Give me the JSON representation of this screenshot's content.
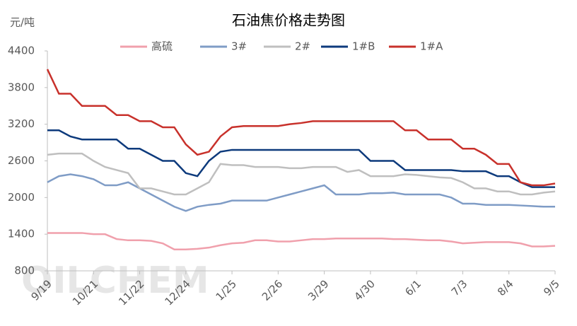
{
  "chart_data": {
    "type": "line",
    "title": "石油焦价格走势图",
    "y_label": "元/吨",
    "watermark": "OILCHEM",
    "categories": [
      "9/19",
      null,
      null,
      null,
      "10/21",
      null,
      null,
      null,
      "11/22",
      null,
      null,
      null,
      "12/24",
      null,
      null,
      null,
      "1/25",
      null,
      null,
      null,
      "2/26",
      null,
      null,
      null,
      "3/29",
      null,
      null,
      null,
      "4/30",
      null,
      null,
      null,
      "6/1",
      null,
      null,
      null,
      "7/3",
      null,
      null,
      null,
      "8/4",
      null,
      null,
      null,
      "9/5"
    ],
    "ylim": [
      800,
      4400
    ],
    "yticks": [
      800,
      1400,
      2000,
      2600,
      3200,
      3800,
      4400
    ],
    "series": [
      {
        "name": "高硫",
        "color": "#f0a0ac",
        "values": [
          1420,
          1420,
          1420,
          1420,
          1400,
          1400,
          1320,
          1300,
          1300,
          1290,
          1250,
          1150,
          1150,
          1160,
          1180,
          1220,
          1250,
          1260,
          1300,
          1300,
          1280,
          1280,
          1300,
          1320,
          1320,
          1330,
          1330,
          1330,
          1330,
          1330,
          1320,
          1320,
          1310,
          1300,
          1300,
          1280,
          1250,
          1260,
          1270,
          1270,
          1270,
          1250,
          1200,
          1200,
          1210
        ]
      },
      {
        "name": "3#",
        "color": "#7f9cc6",
        "values": [
          2250,
          2350,
          2380,
          2350,
          2300,
          2200,
          2200,
          2250,
          2150,
          2050,
          1950,
          1850,
          1780,
          1850,
          1880,
          1900,
          1950,
          1950,
          1950,
          1950,
          2000,
          2050,
          2100,
          2150,
          2200,
          2050,
          2050,
          2050,
          2070,
          2070,
          2080,
          2050,
          2050,
          2050,
          2050,
          2000,
          1900,
          1900,
          1880,
          1880,
          1880,
          1870,
          1860,
          1850,
          1850
        ]
      },
      {
        "name": "2#",
        "color": "#bfbfbf",
        "values": [
          2700,
          2720,
          2720,
          2720,
          2600,
          2500,
          2450,
          2400,
          2150,
          2150,
          2100,
          2050,
          2050,
          2150,
          2250,
          2550,
          2530,
          2530,
          2500,
          2500,
          2500,
          2480,
          2480,
          2500,
          2500,
          2500,
          2420,
          2450,
          2350,
          2350,
          2350,
          2380,
          2370,
          2350,
          2330,
          2320,
          2250,
          2150,
          2150,
          2100,
          2100,
          2050,
          2050,
          2080,
          2100
        ]
      },
      {
        "name": "1#B",
        "color": "#0d3a7c",
        "values": [
          3100,
          3100,
          3000,
          2950,
          2950,
          2950,
          2950,
          2800,
          2800,
          2700,
          2600,
          2600,
          2400,
          2350,
          2600,
          2750,
          2780,
          2780,
          2780,
          2780,
          2780,
          2780,
          2780,
          2780,
          2780,
          2780,
          2780,
          2780,
          2600,
          2600,
          2600,
          2450,
          2450,
          2450,
          2450,
          2450,
          2430,
          2430,
          2430,
          2350,
          2350,
          2250,
          2170,
          2170,
          2170
        ]
      },
      {
        "name": "1#A",
        "color": "#c8312b",
        "values": [
          4100,
          3700,
          3700,
          3500,
          3500,
          3500,
          3350,
          3350,
          3250,
          3250,
          3150,
          3150,
          2870,
          2700,
          2750,
          3000,
          3150,
          3170,
          3170,
          3170,
          3170,
          3200,
          3220,
          3250,
          3250,
          3250,
          3250,
          3250,
          3250,
          3250,
          3250,
          3100,
          3100,
          2950,
          2950,
          2950,
          2800,
          2800,
          2700,
          2550,
          2550,
          2250,
          2200,
          2200,
          2230
        ]
      }
    ]
  }
}
